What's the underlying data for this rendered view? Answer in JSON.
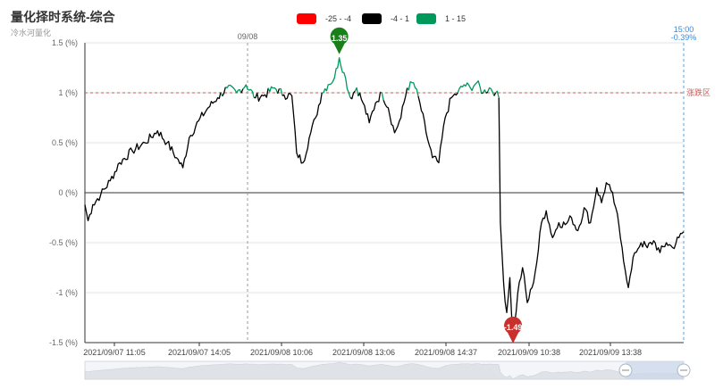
{
  "title": "量化择时系统-综合",
  "subtitle": "冷水河量化",
  "legend": [
    {
      "label": "-25 - -4",
      "color": "#ff0000"
    },
    {
      "label": "-4 - 1",
      "color": "#000000"
    },
    {
      "label": "1 - 15",
      "color": "#00995c"
    }
  ],
  "chart_data": {
    "type": "line",
    "ylim": [
      -1.5,
      1.5
    ],
    "ytick_labels": [
      "1.5 (%)",
      "1 (%)",
      "0.5 (%)",
      "0 (%)",
      "-0.5 (%)",
      "-1 (%)",
      "-1.5 (%)"
    ],
    "xtick_labels": [
      "2021/09/07 11:05",
      "2021/09/07 14:05",
      "2021/09/08 10:06",
      "2021/09/08 13:06",
      "2021/09/08 14:37",
      "2021/09/09 10:38",
      "2021/09/09 13:38"
    ],
    "mark_lines": {
      "day_separator_label": "09/08",
      "end_label_time": "15:00",
      "end_label_value": "-0.39%",
      "threshold_label": "涨跌区",
      "threshold_value": 1.0
    },
    "max_point": {
      "value": 1.35,
      "label": "1.35"
    },
    "min_point": {
      "value": -1.49,
      "label": "-1.49"
    },
    "series_keypoints": [
      {
        "t": 0,
        "v": -0.12
      },
      {
        "t": 2,
        "v": -0.28
      },
      {
        "t": 5,
        "v": -0.12
      },
      {
        "t": 10,
        "v": -0.02
      },
      {
        "t": 16,
        "v": 0.12
      },
      {
        "t": 22,
        "v": 0.3
      },
      {
        "t": 30,
        "v": 0.42
      },
      {
        "t": 38,
        "v": 0.5
      },
      {
        "t": 46,
        "v": 0.62
      },
      {
        "t": 52,
        "v": 0.5
      },
      {
        "t": 58,
        "v": 0.35
      },
      {
        "t": 62,
        "v": 0.25
      },
      {
        "t": 66,
        "v": 0.55
      },
      {
        "t": 72,
        "v": 0.72
      },
      {
        "t": 78,
        "v": 0.85
      },
      {
        "t": 84,
        "v": 0.95
      },
      {
        "t": 90,
        "v": 1.05
      },
      {
        "t": 96,
        "v": 1.0
      },
      {
        "t": 102,
        "v": 1.08
      },
      {
        "t": 108,
        "v": 0.95
      },
      {
        "t": 114,
        "v": 0.98
      },
      {
        "t": 120,
        "v": 1.05
      },
      {
        "t": 126,
        "v": 0.98
      },
      {
        "t": 131,
        "v": 0.97
      },
      {
        "t": 134,
        "v": 0.4
      },
      {
        "t": 138,
        "v": 0.3
      },
      {
        "t": 142,
        "v": 0.55
      },
      {
        "t": 146,
        "v": 0.75
      },
      {
        "t": 150,
        "v": 1.0
      },
      {
        "t": 154,
        "v": 1.08
      },
      {
        "t": 158,
        "v": 1.15
      },
      {
        "t": 161,
        "v": 1.35
      },
      {
        "t": 164,
        "v": 1.2
      },
      {
        "t": 168,
        "v": 0.95
      },
      {
        "t": 172,
        "v": 1.05
      },
      {
        "t": 176,
        "v": 0.9
      },
      {
        "t": 180,
        "v": 0.7
      },
      {
        "t": 184,
        "v": 0.9
      },
      {
        "t": 188,
        "v": 1.0
      },
      {
        "t": 192,
        "v": 0.85
      },
      {
        "t": 196,
        "v": 0.6
      },
      {
        "t": 200,
        "v": 0.75
      },
      {
        "t": 204,
        "v": 1.05
      },
      {
        "t": 208,
        "v": 1.1
      },
      {
        "t": 212,
        "v": 0.9
      },
      {
        "t": 216,
        "v": 0.6
      },
      {
        "t": 220,
        "v": 0.35
      },
      {
        "t": 224,
        "v": 0.3
      },
      {
        "t": 228,
        "v": 0.75
      },
      {
        "t": 232,
        "v": 0.95
      },
      {
        "t": 236,
        "v": 1.0
      },
      {
        "t": 240,
        "v": 1.08
      },
      {
        "t": 244,
        "v": 1.05
      },
      {
        "t": 248,
        "v": 1.1
      },
      {
        "t": 252,
        "v": 1.0
      },
      {
        "t": 256,
        "v": 1.05
      },
      {
        "t": 260,
        "v": 1.0
      },
      {
        "t": 262,
        "v": 0.95
      },
      {
        "t": 263,
        "v": -0.3
      },
      {
        "t": 265,
        "v": -0.9
      },
      {
        "t": 267,
        "v": -1.2
      },
      {
        "t": 269,
        "v": -0.85
      },
      {
        "t": 271,
        "v": -1.49
      },
      {
        "t": 274,
        "v": -1.0
      },
      {
        "t": 277,
        "v": -0.75
      },
      {
        "t": 280,
        "v": -1.1
      },
      {
        "t": 283,
        "v": -0.95
      },
      {
        "t": 286,
        "v": -0.7
      },
      {
        "t": 289,
        "v": -0.3
      },
      {
        "t": 292,
        "v": -0.18
      },
      {
        "t": 296,
        "v": -0.45
      },
      {
        "t": 300,
        "v": -0.3
      },
      {
        "t": 304,
        "v": -0.32
      },
      {
        "t": 308,
        "v": -0.25
      },
      {
        "t": 312,
        "v": -0.38
      },
      {
        "t": 316,
        "v": -0.15
      },
      {
        "t": 320,
        "v": -0.3
      },
      {
        "t": 324,
        "v": 0.05
      },
      {
        "t": 327,
        "v": -0.1
      },
      {
        "t": 330,
        "v": 0.1
      },
      {
        "t": 333,
        "v": 0.02
      },
      {
        "t": 336,
        "v": -0.15
      },
      {
        "t": 340,
        "v": -0.55
      },
      {
        "t": 344,
        "v": -0.95
      },
      {
        "t": 348,
        "v": -0.6
      },
      {
        "t": 352,
        "v": -0.5
      },
      {
        "t": 356,
        "v": -0.55
      },
      {
        "t": 360,
        "v": -0.48
      },
      {
        "t": 364,
        "v": -0.6
      },
      {
        "t": 368,
        "v": -0.5
      },
      {
        "t": 372,
        "v": -0.55
      },
      {
        "t": 376,
        "v": -0.45
      },
      {
        "t": 379,
        "v": -0.39
      }
    ],
    "total_points": 380
  }
}
